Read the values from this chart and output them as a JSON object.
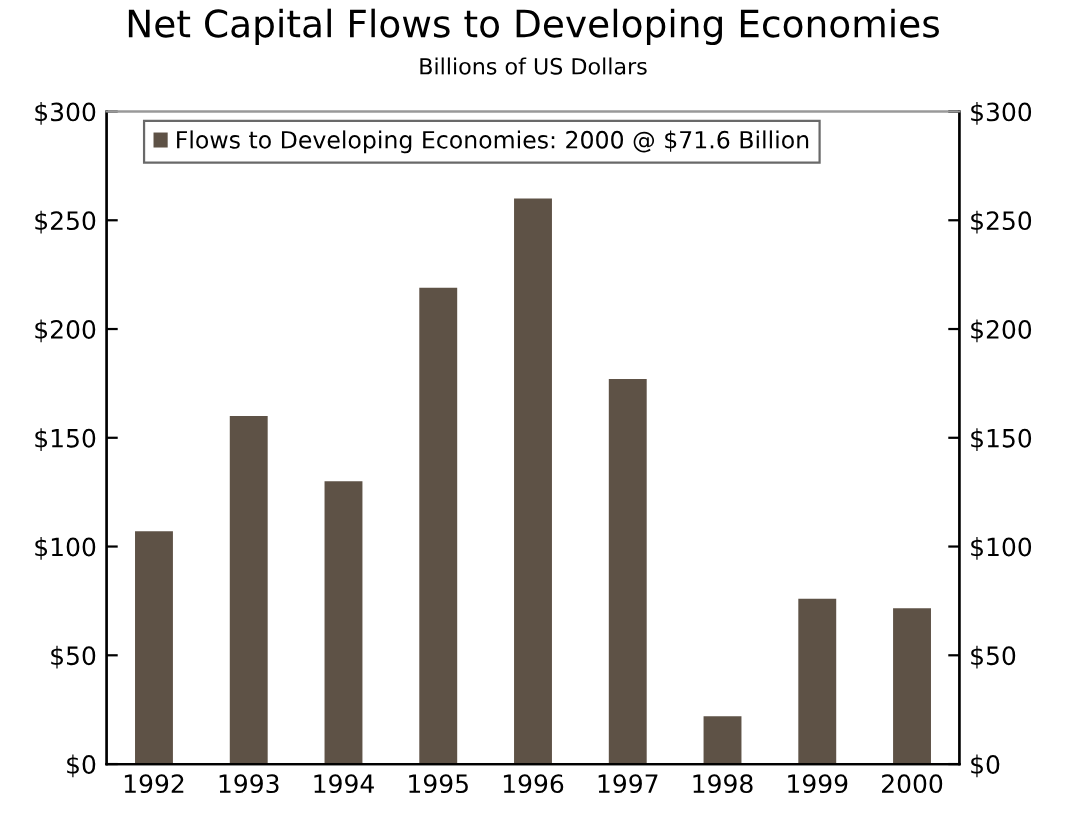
{
  "chart_data": {
    "type": "bar",
    "title": "Net Capital Flows to Developing Economies",
    "subtitle": "Billions of US Dollars",
    "categories": [
      "1992",
      "1993",
      "1994",
      "1995",
      "1996",
      "1997",
      "1998",
      "1999",
      "2000"
    ],
    "series": [
      {
        "name": "Flows to Developing Economies: 2000 @ $71.6 Billion",
        "color": "#5e5246",
        "values": [
          107,
          160,
          130,
          219,
          260,
          177,
          22,
          76,
          71.6
        ]
      }
    ],
    "ylim": [
      0,
      300
    ],
    "yticks": [
      {
        "value": 0,
        "label": "$0"
      },
      {
        "value": 50,
        "label": "$50"
      },
      {
        "value": 100,
        "label": "$100"
      },
      {
        "value": 150,
        "label": "$150"
      },
      {
        "value": 200,
        "label": "$200"
      },
      {
        "value": 250,
        "label": "$250"
      },
      {
        "value": 300,
        "label": "$300"
      }
    ],
    "y2lim": [
      0,
      300
    ],
    "y2ticks": [
      {
        "value": 0,
        "label": "$0"
      },
      {
        "value": 50,
        "label": "$50"
      },
      {
        "value": 100,
        "label": "$100"
      },
      {
        "value": 150,
        "label": "$150"
      },
      {
        "value": 200,
        "label": "$200"
      },
      {
        "value": 250,
        "label": "$250"
      },
      {
        "value": 300,
        "label": "$300"
      }
    ],
    "legend": "top",
    "grid": false
  }
}
